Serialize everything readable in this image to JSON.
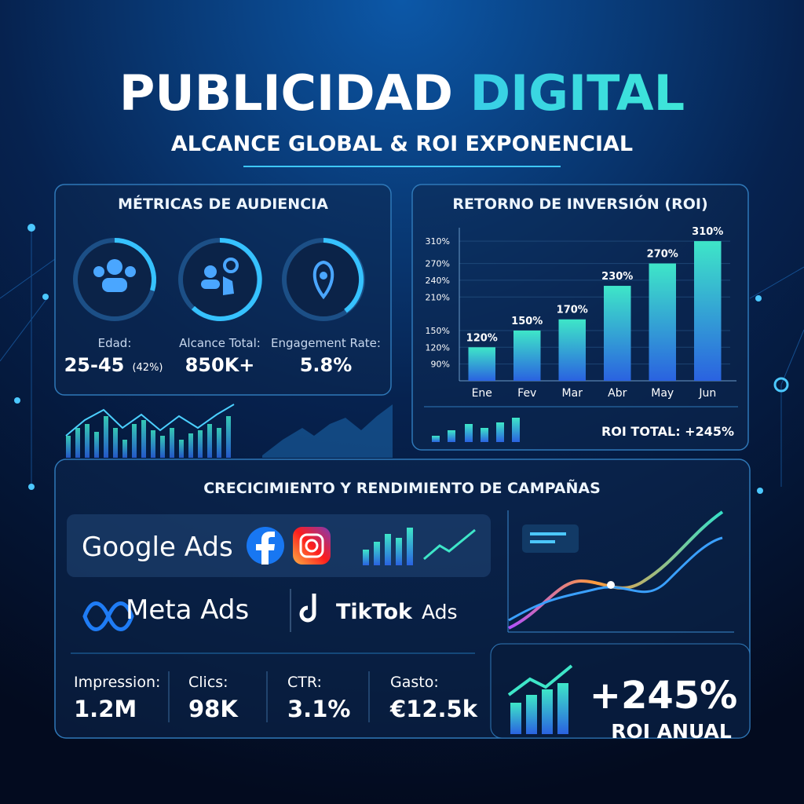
{
  "header": {
    "title": "PUBLICIDAD",
    "title_highlight": "DIGITAL",
    "subtitle": "ALCANCE GLOBAL & ROI EXPONENCIAL"
  },
  "audience": {
    "title": "MÉTRICAS DE AUDIENCIA",
    "metrics": [
      {
        "label": "Edad:",
        "value": "25-45",
        "note": "(42%)"
      },
      {
        "label": "Alcance Total:",
        "value": "850K+"
      },
      {
        "label": "Engagement Rate:",
        "value": "5.8%"
      }
    ]
  },
  "chart_data": {
    "type": "bar",
    "title": "RETORNO DE INVERSIÓN (ROI)",
    "categories": [
      "Ene",
      "Fev",
      "Mar",
      "Abr",
      "May",
      "Jun"
    ],
    "values": [
      120,
      150,
      170,
      230,
      270,
      310
    ],
    "value_labels": [
      "120%",
      "150%",
      "170%",
      "230%",
      "270%",
      "310%"
    ],
    "ylim": [
      60,
      320
    ],
    "yticks": [
      {
        "value": 90,
        "label": "90%"
      },
      {
        "value": 120,
        "label": "120%"
      },
      {
        "value": 150,
        "label": "150%"
      },
      {
        "value": 210,
        "label": "210%"
      },
      {
        "value": 240,
        "label": "240%"
      },
      {
        "value": 270,
        "label": "270%"
      },
      {
        "value": 310,
        "label": "310%"
      }
    ],
    "grid": true,
    "color": "#2fc7d8",
    "annotation": "ROI TOTAL: +245%"
  },
  "campaigns": {
    "title": "CRECICIMIENTO Y RENDIMIENTO DE CAMPAÑAS",
    "brands": [
      "Google Ads",
      "Meta Ads",
      "TikTok",
      "Ads"
    ],
    "stats": [
      {
        "label": "Impression:",
        "value": "1.2M"
      },
      {
        "label": "Clics:",
        "value": "98K"
      },
      {
        "label": "CTR:",
        "value": "3.1%"
      },
      {
        "label": "Gasto:",
        "value": "€12.5k"
      }
    ]
  },
  "highlight": {
    "value": "+245%",
    "label": "ROI ANUAL"
  }
}
